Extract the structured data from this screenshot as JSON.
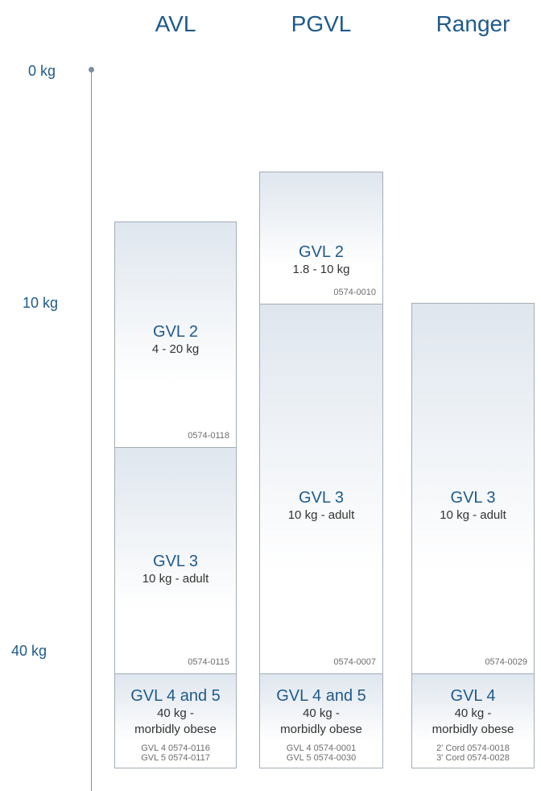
{
  "columns": [
    {
      "name": "AVL"
    },
    {
      "name": "PGVL"
    },
    {
      "name": "Ranger"
    }
  ],
  "axis": {
    "ticks": [
      "0 kg",
      "10 kg",
      "40 kg"
    ]
  },
  "avl": {
    "gvl2": {
      "title": "GVL 2",
      "range": "4 - 20 kg",
      "code": "0574-0118"
    },
    "gvl3": {
      "title": "GVL 3",
      "range": "10 kg - adult",
      "code": "0574-0115"
    },
    "gvl45": {
      "title": "GVL 4 and 5",
      "range_line1": "40 kg -",
      "range_line2": "morbidly obese",
      "codes": [
        "GVL 4  0574-0116",
        "GVL 5  0574-0117"
      ]
    }
  },
  "pgvl": {
    "gvl2": {
      "title": "GVL 2",
      "range": "1.8 - 10 kg",
      "code": "0574-0010"
    },
    "gvl3": {
      "title": "GVL 3",
      "range": "10 kg - adult",
      "code": "0574-0007"
    },
    "gvl45": {
      "title": "GVL 4 and 5",
      "range_line1": "40 kg -",
      "range_line2": "morbidly obese",
      "codes": [
        "GVL 4  0574-0001",
        "GVL 5  0574-0030"
      ]
    }
  },
  "ranger": {
    "gvl3": {
      "title": "GVL 3",
      "range": "10 kg - adult",
      "code": "0574-0029"
    },
    "gvl4": {
      "title": "GVL 4",
      "range_line1": "40 kg -",
      "range_line2": "morbidly obese",
      "codes": [
        "2' Cord  0574-0018",
        "3' Cord  0574-0028"
      ]
    }
  },
  "colors": {
    "accent": "#1f5a8c",
    "border": "#a3adb8",
    "gradient_top": "#dfe6ee"
  }
}
